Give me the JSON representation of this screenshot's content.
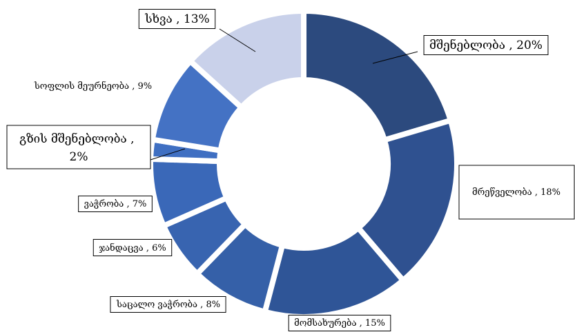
{
  "chart_data": {
    "type": "pie",
    "categories": [
      "მშენებლობა",
      "მრეწველობა",
      "მომსახურება",
      "საცალო ვაჭრობა",
      "ჯანდაცვა",
      "ვაჭრობა",
      "გზის მშენებლობა",
      "სოფლის მეურნეობა",
      "სხვა"
    ],
    "values": [
      20,
      18,
      15,
      8,
      6,
      7,
      2,
      9,
      13
    ],
    "value_labels": [
      "20%",
      "18%",
      "15%",
      "8%",
      "6%",
      "7%",
      "2%",
      "9%",
      "13%"
    ],
    "label_separator": " , ",
    "colors": [
      "#2c4a7e",
      "#2f5190",
      "#2f5597",
      "#3560a8",
      "#3864b0",
      "#3a68b8",
      "#3f6fc2",
      "#4472c4",
      "#c9d1ea"
    ]
  }
}
